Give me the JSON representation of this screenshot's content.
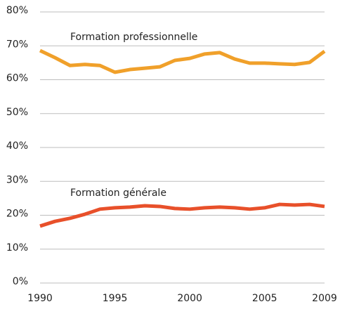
{
  "chart_data": {
    "type": "line",
    "x": [
      1990,
      1991,
      1992,
      1993,
      1994,
      1995,
      1996,
      1997,
      1998,
      1999,
      2000,
      2001,
      2002,
      2003,
      2004,
      2005,
      2006,
      2007,
      2008,
      2009
    ],
    "series": [
      {
        "name": "Formation professionnelle",
        "color": "#f0a02a",
        "values": [
          68.6,
          66.5,
          64.2,
          64.5,
          64.2,
          62.2,
          63.0,
          63.4,
          63.8,
          65.7,
          66.3,
          67.6,
          68.0,
          66.1,
          64.9,
          64.9,
          64.7,
          64.5,
          65.1,
          68.4
        ]
      },
      {
        "name": "Formation générale",
        "color": "#e8502a",
        "values": [
          16.8,
          18.2,
          19.1,
          20.3,
          21.8,
          22.2,
          22.4,
          22.8,
          22.6,
          22.0,
          21.8,
          22.2,
          22.4,
          22.2,
          21.8,
          22.2,
          23.2,
          23.0,
          23.2,
          22.6
        ]
      }
    ],
    "xlim": [
      1990,
      2009
    ],
    "xticks": [
      1990,
      1995,
      2000,
      2005,
      2009
    ],
    "ylim": [
      0,
      80
    ],
    "yticks": [
      {
        "value": 0,
        "label": "0%"
      },
      {
        "value": 10,
        "label": "10%"
      },
      {
        "value": 20,
        "label": "20%"
      },
      {
        "value": 30,
        "label": "30%"
      },
      {
        "value": 40,
        "label": "40%"
      },
      {
        "value": 50,
        "label": "50%"
      },
      {
        "value": 60,
        "label": "60%"
      },
      {
        "value": 70,
        "label": "70%"
      },
      {
        "value": 80,
        "label": "80%"
      }
    ],
    "grid": true
  }
}
